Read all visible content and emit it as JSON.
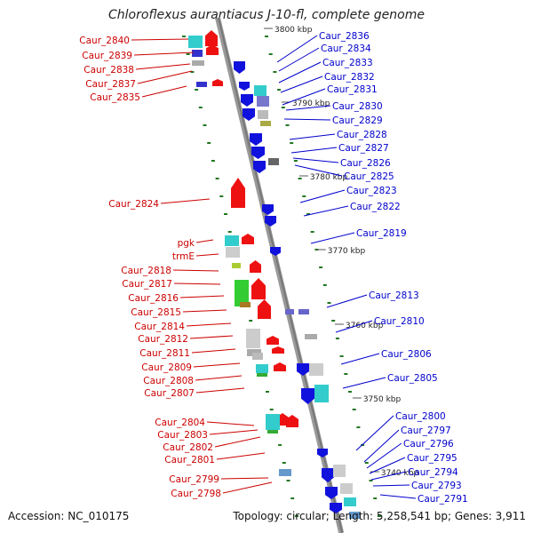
{
  "title": "Chloroflexus aurantiacus J-10-fl, complete genome",
  "footer": {
    "accession": "Accession: NC_010175",
    "topology": "Topology: circular; Length: 5,258,541 bp; Genes: 3,911"
  },
  "colors": {
    "left_label": "#cc0000",
    "right_label": "#0000cc",
    "forward_gene": "#ee1111",
    "reverse_gene": "#1111dd",
    "backbone": "#888888",
    "tick": "#227722"
  },
  "ruler": [
    {
      "label": "3800 kbp"
    },
    {
      "label": "3790 kbp"
    },
    {
      "label": "3780 kbp"
    },
    {
      "label": "3770 kbp"
    },
    {
      "label": "3760 kbp"
    },
    {
      "label": "3750 kbp"
    },
    {
      "label": "3740 kbp"
    }
  ],
  "left_labels": [
    "Caur_2840",
    "Caur_2839",
    "Caur_2838",
    "Caur_2837",
    "Caur_2835",
    "Caur_2824",
    "pgk",
    "trmE",
    "Caur_2818",
    "Caur_2817",
    "Caur_2816",
    "Caur_2815",
    "Caur_2814",
    "Caur_2812",
    "Caur_2811",
    "Caur_2809",
    "Caur_2808",
    "Caur_2807",
    "Caur_2804",
    "Caur_2803",
    "Caur_2802",
    "Caur_2801",
    "Caur_2799",
    "Caur_2798"
  ],
  "right_labels": [
    "Caur_2836",
    "Caur_2834",
    "Caur_2833",
    "Caur_2832",
    "Caur_2831",
    "Caur_2830",
    "Caur_2829",
    "Caur_2828",
    "Caur_2827",
    "Caur_2826",
    "Caur_2825",
    "Caur_2823",
    "Caur_2822",
    "Caur_2819",
    "Caur_2813",
    "Caur_2810",
    "Caur_2806",
    "Caur_2805",
    "Caur_2800",
    "Caur_2797",
    "Caur_2796",
    "Caur_2795",
    "Caur_2794",
    "Caur_2793",
    "Caur_2791"
  ]
}
